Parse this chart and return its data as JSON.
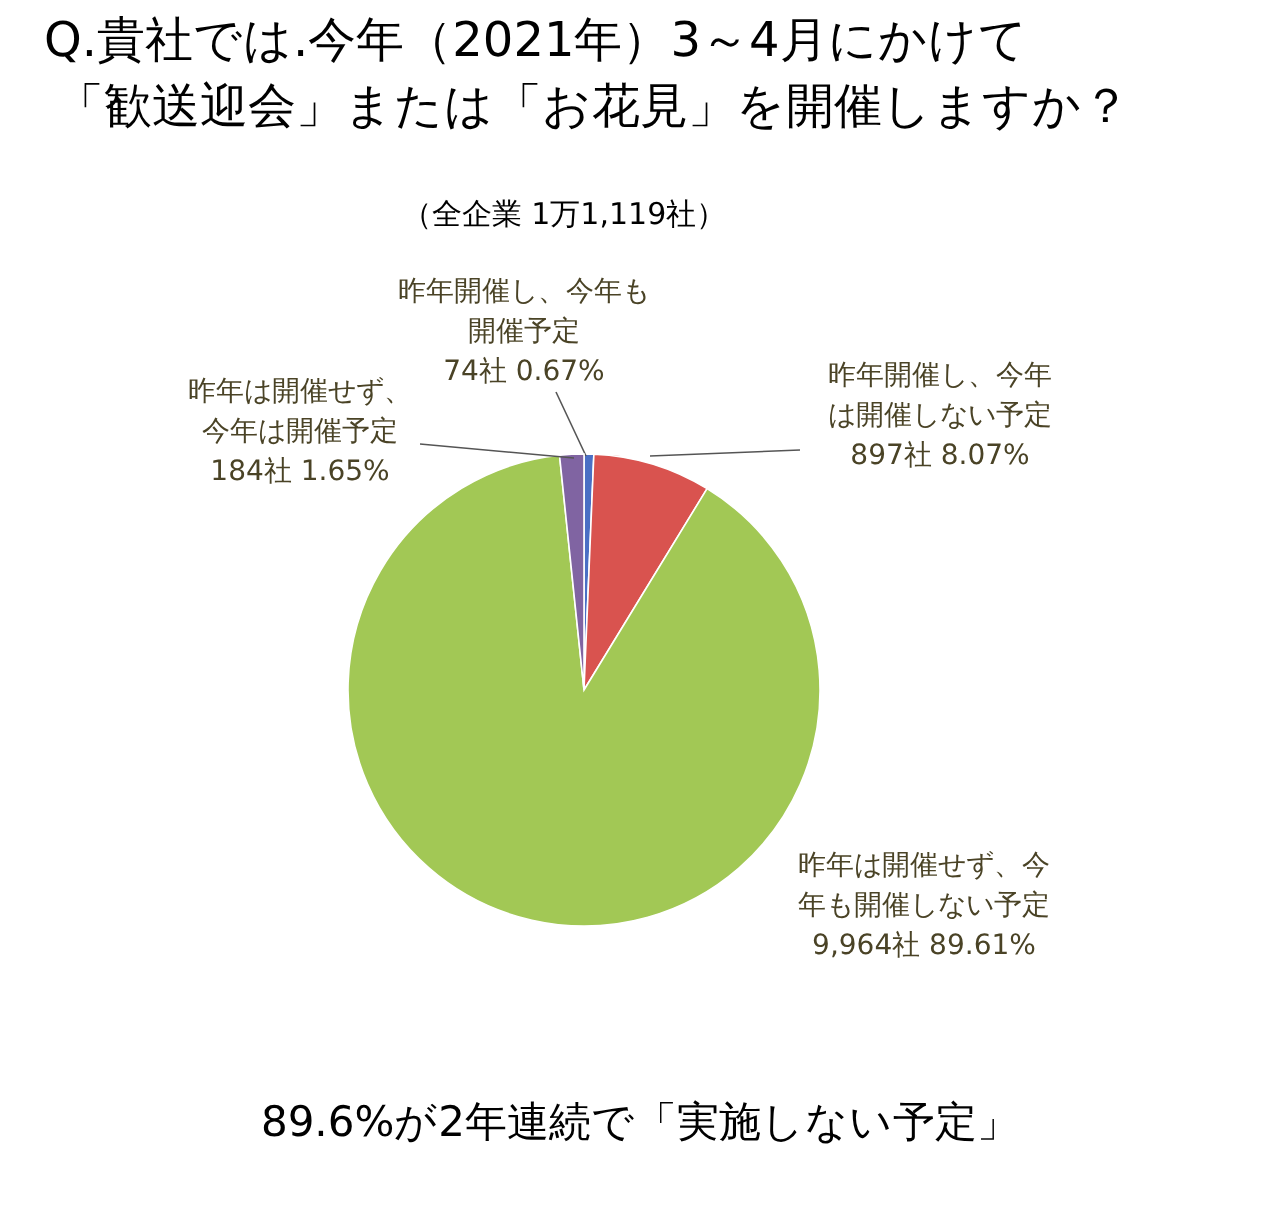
{
  "chart_data": {
    "type": "pie",
    "title": "Q.貴社では.今年（2021年）3～4月にかけて「歓送迎会」または「お花見」を開催しますか？",
    "subtitle": "（全企業 1万1,119社）",
    "categories": [
      "昨年開催し、今年も開催予定",
      "昨年開催し、今年は開催しない予定",
      "昨年は開催せず、今年も開催しない予定",
      "昨年は開催せず、今年は開催予定"
    ],
    "values": [
      74,
      897,
      9964,
      184
    ],
    "value_labels": [
      "74社 0.67%",
      "897社 8.07%",
      "9,964社 89.61%",
      "184社 1.65%"
    ],
    "colors": [
      "#4a6fc4",
      "#d9534f",
      "#a2c855",
      "#8064a2"
    ],
    "annotations": [
      "89.6%が2年連続で「実施しない予定」"
    ]
  }
}
